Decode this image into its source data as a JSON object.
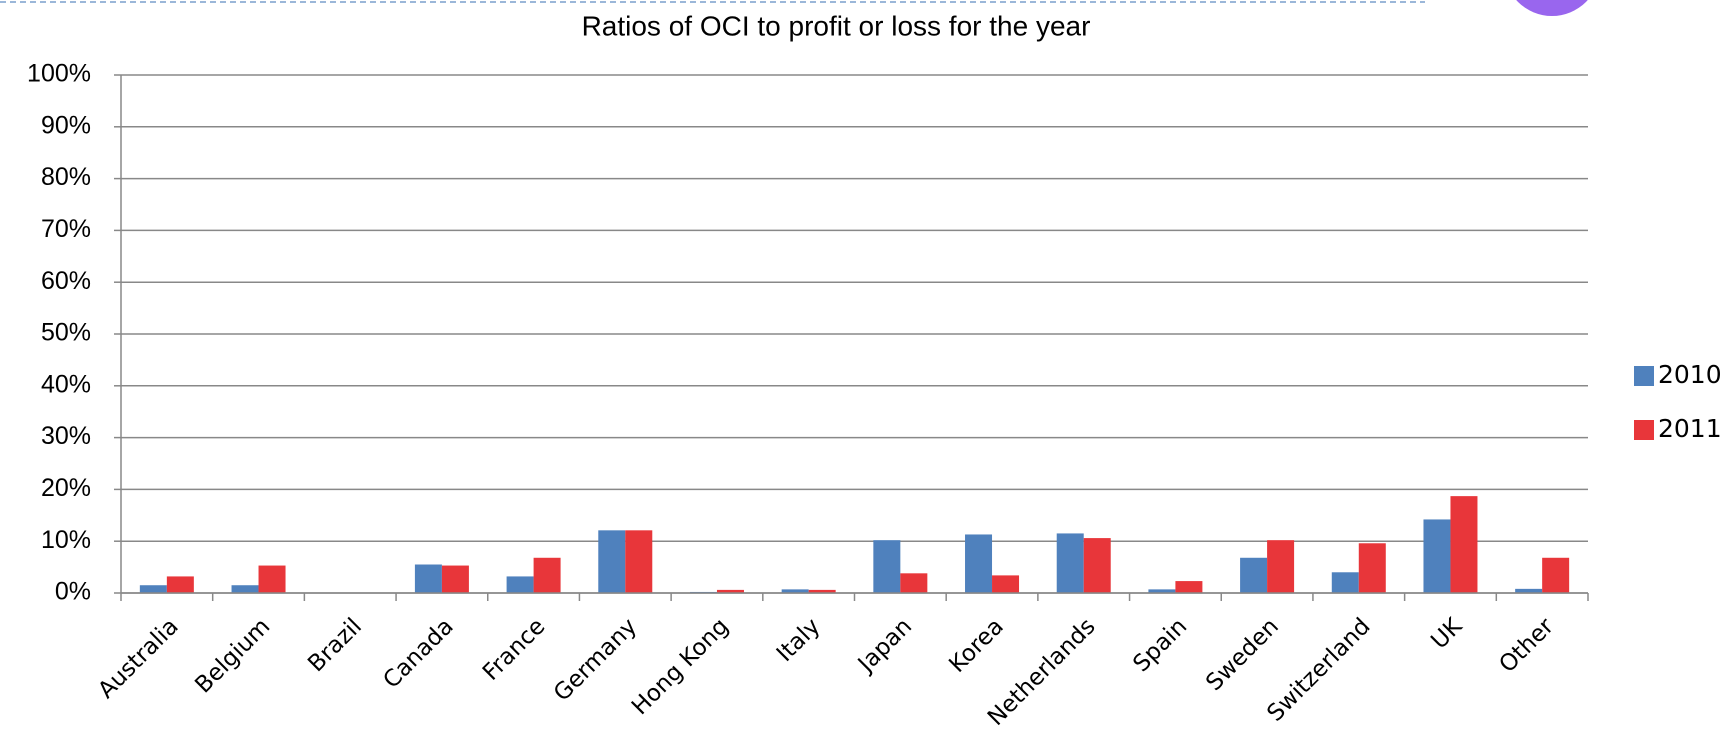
{
  "chart_data": {
    "type": "bar",
    "title": "Ratios of OCI to profit or loss for the year",
    "categories": [
      "Australia",
      "Belgium",
      "Brazil",
      "Canada",
      "France",
      "Germany",
      "Hong Kong",
      "Italy",
      "Japan",
      "Korea",
      "Netherlands",
      "Spain",
      "Sweden",
      "Switzerland",
      "UK",
      "Other"
    ],
    "series": [
      {
        "name": "2010",
        "color": "#4f81bd",
        "values": [
          1.5,
          1.5,
          0,
          5.5,
          3.2,
          12.1,
          0.2,
          0.7,
          10.2,
          11.3,
          11.5,
          0.7,
          6.8,
          4.0,
          14.2,
          0.8
        ]
      },
      {
        "name": "2011",
        "color": "#e8363a",
        "values": [
          3.2,
          5.3,
          0,
          5.3,
          6.8,
          12.1,
          0.6,
          0.6,
          3.8,
          3.4,
          10.6,
          2.3,
          10.2,
          9.6,
          18.7,
          6.8
        ]
      }
    ],
    "ylim": [
      0,
      100
    ],
    "yticks": [
      {
        "value": 0,
        "label": "0%"
      },
      {
        "value": 10,
        "label": "10%"
      },
      {
        "value": 20,
        "label": "20%"
      },
      {
        "value": 30,
        "label": "30%"
      },
      {
        "value": 40,
        "label": "40%"
      },
      {
        "value": 50,
        "label": "50%"
      },
      {
        "value": 60,
        "label": "60%"
      },
      {
        "value": 70,
        "label": "70%"
      },
      {
        "value": 80,
        "label": "80%"
      },
      {
        "value": 90,
        "label": "90%"
      },
      {
        "value": 100,
        "label": "100%"
      }
    ],
    "grid": true,
    "legend": "right"
  }
}
